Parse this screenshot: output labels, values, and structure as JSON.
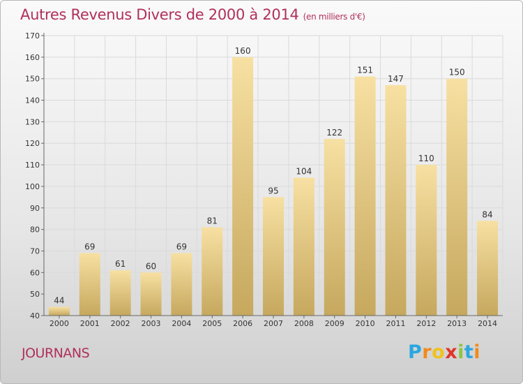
{
  "header": {
    "title": "Autres Revenus Divers de 2000 à 2014",
    "subtitle": "(en milliers d'€)"
  },
  "location": "JOURNANS",
  "logo": {
    "letters": [
      "P",
      "r",
      "o",
      "x",
      "i",
      "t",
      "i"
    ],
    "colors": [
      "#2aa7e0",
      "#f08a1c",
      "#f0c21c",
      "#e0352a",
      "#8cc63f",
      "#2aa7e0",
      "#f08a1c"
    ]
  },
  "chart_data": {
    "type": "bar",
    "title": "Autres Revenus Divers de 2000 à 2014",
    "subtitle": "(en milliers d'€)",
    "xlabel": "",
    "ylabel": "",
    "ylim": [
      40,
      170
    ],
    "yticks": [
      40,
      50,
      60,
      70,
      80,
      90,
      100,
      110,
      120,
      130,
      140,
      150,
      160,
      170
    ],
    "grid": true,
    "categories": [
      "2000",
      "2001",
      "2002",
      "2003",
      "2004",
      "2005",
      "2006",
      "2007",
      "2008",
      "2009",
      "2010",
      "2011",
      "2012",
      "2013",
      "2014"
    ],
    "values": [
      44,
      69,
      61,
      60,
      69,
      81,
      160,
      95,
      104,
      122,
      151,
      147,
      110,
      150,
      84
    ],
    "bar_color": "#e9cc80"
  }
}
